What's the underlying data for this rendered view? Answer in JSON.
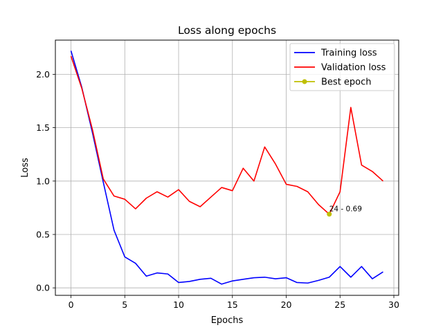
{
  "chart_data": {
    "type": "line",
    "title": "Loss along epochs",
    "xlabel": "Epochs",
    "ylabel": "Loss",
    "xlim": [
      -1.45,
      30.45
    ],
    "ylim": [
      -0.07,
      2.32
    ],
    "xticks": [
      0,
      5,
      10,
      15,
      20,
      25,
      30
    ],
    "yticks": [
      0.0,
      0.5,
      1.0,
      1.5,
      2.0
    ],
    "xtick_labels": [
      "0",
      "5",
      "10",
      "15",
      "20",
      "25",
      "30"
    ],
    "ytick_labels": [
      "0.0",
      "0.5",
      "1.0",
      "1.5",
      "2.0"
    ],
    "grid": true,
    "legend_position": "top-right",
    "x": [
      0,
      1,
      2,
      3,
      4,
      5,
      6,
      7,
      8,
      9,
      10,
      11,
      12,
      13,
      14,
      15,
      16,
      17,
      18,
      19,
      20,
      21,
      22,
      23,
      24,
      25,
      26,
      27,
      28,
      29
    ],
    "series": [
      {
        "name": "Training loss",
        "color": "#0000ff",
        "values": [
          2.22,
          1.88,
          1.45,
          0.99,
          0.54,
          0.29,
          0.23,
          0.11,
          0.14,
          0.13,
          0.05,
          0.06,
          0.08,
          0.09,
          0.035,
          0.065,
          0.08,
          0.095,
          0.1,
          0.085,
          0.095,
          0.05,
          0.045,
          0.07,
          0.1,
          0.2,
          0.1,
          0.2,
          0.085,
          0.15
        ]
      },
      {
        "name": "Validation loss",
        "color": "#ff0000",
        "values": [
          2.17,
          1.87,
          1.48,
          1.02,
          0.86,
          0.83,
          0.74,
          0.84,
          0.9,
          0.85,
          0.92,
          0.81,
          0.76,
          0.85,
          0.94,
          0.91,
          1.12,
          1.0,
          1.32,
          1.16,
          0.97,
          0.95,
          0.9,
          0.78,
          0.69,
          0.9,
          1.69,
          1.15,
          1.09,
          1.0
        ]
      }
    ],
    "best_epoch": {
      "name": "Best epoch",
      "color": "#bfbf00",
      "x": 24,
      "y": 0.69,
      "label": "24 - 0.69"
    }
  }
}
